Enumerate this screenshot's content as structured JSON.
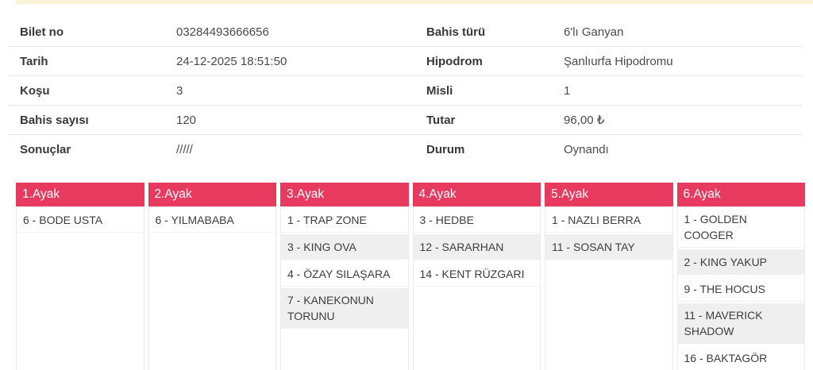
{
  "page": {
    "accent_color": "#e8395e",
    "stripe_color": "#efefef",
    "top_strip_color": "#fbf3d9"
  },
  "info": {
    "rows": [
      {
        "label_left": "Bilet no",
        "value_left": "03284493666656",
        "label_right": "Bahis türü",
        "value_right": "6'lı Ganyan"
      },
      {
        "label_left": "Tarih",
        "value_left": "24-12-2025 18:51:50",
        "label_right": "Hipodrom",
        "value_right": "Şanlıurfa Hipodromu"
      },
      {
        "label_left": "Koşu",
        "value_left": "3",
        "label_right": "Misli",
        "value_right": "1"
      },
      {
        "label_left": "Bahis sayısı",
        "value_left": "120",
        "label_right": "Tutar",
        "value_right": "96,00 ₺"
      },
      {
        "label_left": "Sonuçlar",
        "value_left": "/////",
        "label_right": "Durum",
        "value_right": "Oynandı"
      }
    ]
  },
  "legs": {
    "columns": [
      {
        "header": "1.Ayak",
        "picks": [
          "6 - BODE USTA"
        ]
      },
      {
        "header": "2.Ayak",
        "picks": [
          "6 - YILMABABA"
        ]
      },
      {
        "header": "3.Ayak",
        "picks": [
          "1 - TRAP ZONE",
          "3 - KING OVA",
          "4 - ÖZAY SILAŞARA",
          "7 - KANEKONUN TORUNU"
        ]
      },
      {
        "header": "4.Ayak",
        "picks": [
          "3 - HEDBE",
          "12 - SARARHAN",
          "14 - KENT RÜZGARI"
        ]
      },
      {
        "header": "5.Ayak",
        "picks": [
          "1 - NAZLI BERRA",
          "11 - SOSAN TAY"
        ]
      },
      {
        "header": "6.Ayak",
        "picks": [
          "1 - GOLDEN COOGER",
          "2 - KING YAKUP",
          "9 - THE HOCUS",
          "11 - MAVERICK SHADOW",
          "16 - BAKTAGÖR"
        ]
      }
    ]
  }
}
